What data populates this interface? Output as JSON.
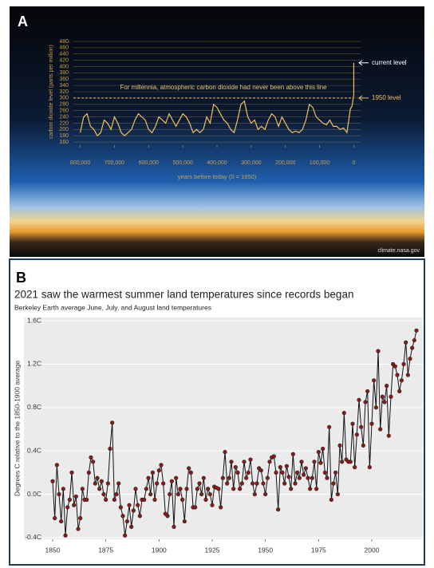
{
  "chart_data": [
    {
      "type": "line",
      "panel": "A",
      "ylabel": "carbon dioxide level (parts per million)",
      "xlabel": "years before today (0 = 1950)",
      "annotations": {
        "note": "For millennia, atmospheric carbon dioxide had never been above this line",
        "current": "current level",
        "base": "1950 level",
        "source": "climate.nasa.gov"
      },
      "reference_line": 300,
      "color": "#f0c060",
      "x": [
        800000,
        790000,
        780000,
        770000,
        760000,
        750000,
        740000,
        730000,
        720000,
        710000,
        700000,
        690000,
        680000,
        670000,
        660000,
        650000,
        640000,
        630000,
        620000,
        610000,
        600000,
        590000,
        580000,
        570000,
        560000,
        550000,
        540000,
        530000,
        520000,
        510000,
        500000,
        490000,
        480000,
        470000,
        460000,
        450000,
        440000,
        430000,
        420000,
        410000,
        400000,
        390000,
        380000,
        370000,
        360000,
        350000,
        340000,
        330000,
        320000,
        310000,
        300000,
        290000,
        280000,
        270000,
        260000,
        250000,
        240000,
        230000,
        220000,
        210000,
        200000,
        190000,
        180000,
        170000,
        160000,
        150000,
        140000,
        130000,
        120000,
        110000,
        100000,
        90000,
        80000,
        70000,
        60000,
        50000,
        40000,
        30000,
        20000,
        10000,
        5000,
        0,
        0
      ],
      "values": [
        190,
        240,
        250,
        210,
        200,
        180,
        190,
        230,
        220,
        200,
        240,
        220,
        190,
        180,
        190,
        200,
        230,
        250,
        240,
        230,
        200,
        190,
        210,
        240,
        230,
        220,
        250,
        230,
        210,
        230,
        250,
        240,
        220,
        190,
        200,
        190,
        200,
        240,
        220,
        280,
        270,
        250,
        230,
        220,
        200,
        190,
        230,
        280,
        290,
        240,
        220,
        230,
        200,
        210,
        200,
        230,
        250,
        240,
        210,
        240,
        220,
        200,
        190,
        195,
        190,
        200,
        230,
        280,
        270,
        240,
        230,
        220,
        215,
        230,
        210,
        210,
        200,
        205,
        190,
        265,
        275,
        310,
        412
      ],
      "xlim": [
        820000,
        -20000
      ],
      "ylim": [
        150,
        490
      ],
      "xticks": [
        {
          "value": 800000,
          "label": "800,000"
        },
        {
          "value": 700000,
          "label": "700,000"
        },
        {
          "value": 600000,
          "label": "600,000"
        },
        {
          "value": 500000,
          "label": "500,000"
        },
        {
          "value": 400000,
          "label": "400,000"
        },
        {
          "value": 300000,
          "label": "300,000"
        },
        {
          "value": 200000,
          "label": "200,000"
        },
        {
          "value": 100000,
          "label": "100,000"
        },
        0
      ],
      "yticks": [
        160,
        180,
        200,
        220,
        240,
        260,
        280,
        300,
        320,
        340,
        360,
        380,
        400,
        420,
        440,
        460,
        480
      ],
      "grid": true
    },
    {
      "type": "line",
      "panel": "B",
      "title": "2021 saw the warmest summer land temperatures since records began",
      "subtitle": "Berkeley Earth average June, July, and August land temperatures",
      "ylabel": "Degrees C relative to the 1850-1900 average",
      "color": "#111111",
      "marker_color": "#8b1a1a",
      "x": [
        1850,
        1851,
        1852,
        1853,
        1854,
        1855,
        1856,
        1857,
        1858,
        1859,
        1860,
        1861,
        1862,
        1863,
        1864,
        1865,
        1866,
        1867,
        1868,
        1869,
        1870,
        1871,
        1872,
        1873,
        1874,
        1875,
        1876,
        1877,
        1878,
        1879,
        1880,
        1881,
        1882,
        1883,
        1884,
        1885,
        1886,
        1887,
        1888,
        1889,
        1890,
        1891,
        1892,
        1893,
        1894,
        1895,
        1896,
        1897,
        1898,
        1899,
        1900,
        1901,
        1902,
        1903,
        1904,
        1905,
        1906,
        1907,
        1908,
        1909,
        1910,
        1911,
        1912,
        1913,
        1914,
        1915,
        1916,
        1917,
        1918,
        1919,
        1920,
        1921,
        1922,
        1923,
        1924,
        1925,
        1926,
        1927,
        1928,
        1929,
        1930,
        1931,
        1932,
        1933,
        1934,
        1935,
        1936,
        1937,
        1938,
        1939,
        1940,
        1941,
        1942,
        1943,
        1944,
        1945,
        1946,
        1947,
        1948,
        1949,
        1950,
        1951,
        1952,
        1953,
        1954,
        1955,
        1956,
        1957,
        1958,
        1959,
        1960,
        1961,
        1962,
        1963,
        1964,
        1965,
        1966,
        1967,
        1968,
        1969,
        1970,
        1971,
        1972,
        1973,
        1974,
        1975,
        1976,
        1977,
        1978,
        1979,
        1980,
        1981,
        1982,
        1983,
        1984,
        1985,
        1986,
        1987,
        1988,
        1989,
        1990,
        1991,
        1992,
        1993,
        1994,
        1995,
        1996,
        1997,
        1998,
        1999,
        2000,
        2001,
        2002,
        2003,
        2004,
        2005,
        2006,
        2007,
        2008,
        2009,
        2010,
        2011,
        2012,
        2013,
        2014,
        2015,
        2016,
        2017,
        2018,
        2019,
        2020,
        2021
      ],
      "values": [
        0.12,
        -0.22,
        0.27,
        0.0,
        -0.25,
        0.05,
        -0.38,
        -0.12,
        -0.05,
        0.2,
        -0.1,
        -0.02,
        -0.32,
        -0.22,
        0.05,
        -0.05,
        -0.05,
        0.2,
        0.34,
        0.3,
        0.1,
        0.15,
        0.05,
        0.12,
        0.0,
        -0.05,
        0.1,
        0.42,
        0.66,
        -0.05,
        0.0,
        0.1,
        -0.12,
        -0.2,
        -0.38,
        -0.25,
        -0.1,
        -0.3,
        -0.15,
        0.05,
        -0.1,
        -0.2,
        -0.05,
        -0.05,
        0.05,
        0.15,
        0.0,
        0.2,
        -0.05,
        0.1,
        0.22,
        0.27,
        0.1,
        -0.18,
        -0.2,
        0.0,
        0.12,
        -0.3,
        0.15,
        0.0,
        0.05,
        -0.05,
        -0.25,
        0.05,
        0.24,
        0.2,
        -0.12,
        -0.12,
        0.05,
        0.1,
        0.0,
        0.15,
        -0.05,
        0.05,
        0.0,
        -0.1,
        0.07,
        0.06,
        0.05,
        -0.12,
        0.15,
        0.39,
        0.1,
        0.15,
        0.3,
        0.05,
        0.25,
        0.2,
        0.05,
        0.1,
        0.3,
        0.15,
        0.2,
        0.32,
        0.1,
        0.0,
        0.1,
        0.24,
        0.22,
        0.1,
        0.0,
        0.15,
        0.3,
        0.34,
        0.35,
        0.2,
        -0.14,
        0.25,
        0.2,
        0.1,
        0.26,
        0.16,
        0.05,
        0.37,
        0.1,
        0.2,
        0.15,
        0.3,
        0.18,
        0.24,
        0.15,
        0.05,
        0.15,
        0.3,
        0.05,
        0.39,
        0.29,
        0.42,
        0.2,
        0.15,
        0.62,
        -0.05,
        0.1,
        0.2,
        0.0,
        0.45,
        0.3,
        0.75,
        0.32,
        0.3,
        0.3,
        0.65,
        0.25,
        0.55,
        0.87,
        0.62,
        0.45,
        0.85,
        0.95,
        0.25,
        0.65,
        1.05,
        0.8,
        1.32,
        0.6,
        0.9,
        0.85,
        1.0,
        0.54,
        0.9,
        1.2,
        1.18,
        1.1,
        0.95,
        1.05,
        1.2,
        1.4,
        1.1,
        1.25,
        1.35,
        1.42,
        1.51
      ],
      "xlim": [
        1847,
        2024
      ],
      "ylim": [
        -0.415,
        1.63
      ],
      "xticks": [
        1850,
        1875,
        1900,
        1925,
        1950,
        1975,
        2000
      ],
      "yticks": [
        {
          "value": -0.4,
          "label": "-0.4C"
        },
        {
          "value": 0.0,
          "label": "0.0C"
        },
        {
          "value": 0.4,
          "label": "0.4C"
        },
        {
          "value": 0.8,
          "label": "0.8C"
        },
        {
          "value": 1.2,
          "label": "1.2C"
        },
        {
          "value": 1.6,
          "label": "1.6C"
        }
      ],
      "grid": true
    }
  ]
}
